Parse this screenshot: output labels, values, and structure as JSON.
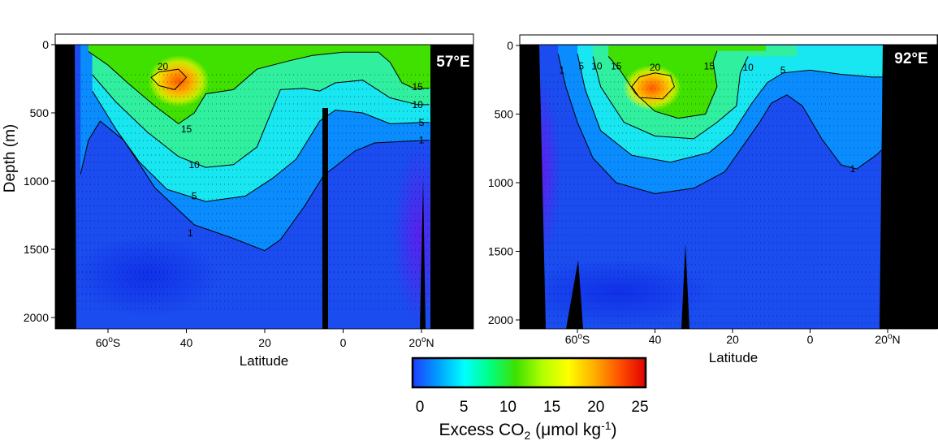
{
  "chart_data": [
    {
      "type": "heatmap",
      "title": "57°E",
      "xlabel": "Latitude",
      "ylabel": "Depth (m)",
      "xlim": [
        -74,
        33
      ],
      "ylim": [
        0,
        2100
      ],
      "x_ticks": [
        {
          "value": -60,
          "label": "60",
          "suffix": "o",
          "hemi": "S"
        },
        {
          "value": -40,
          "label": "40"
        },
        {
          "value": -20,
          "label": "20"
        },
        {
          "value": 0,
          "label": "0"
        },
        {
          "value": 20,
          "label": "20",
          "suffix": "o",
          "hemi": "N"
        }
      ],
      "y_ticks": [
        0,
        500,
        1000,
        1500,
        2000
      ],
      "contour_lines": [
        {
          "level": "20",
          "label": "20",
          "points": [
            [
              -47,
              200
            ],
            [
              -42,
              180
            ],
            [
              -40,
              240
            ],
            [
              -43,
              330
            ],
            [
              -47,
              300
            ],
            [
              -49,
              240
            ],
            [
              -47,
              200
            ]
          ],
          "label_at": [
            -46,
            160
          ]
        },
        {
          "level": "15",
          "label": "15",
          "points": [
            [
              -65,
              50
            ],
            [
              -60,
              150
            ],
            [
              -55,
              280
            ],
            [
              -48,
              450
            ],
            [
              -42,
              580
            ],
            [
              -38,
              500
            ],
            [
              -35,
              360
            ],
            [
              -28,
              330
            ],
            [
              -22,
              180
            ],
            [
              -14,
              120
            ],
            [
              -8,
              80
            ],
            [
              0,
              55
            ],
            [
              9,
              55
            ],
            [
              12,
              130
            ],
            [
              15,
              280
            ],
            [
              18,
              320
            ],
            [
              22,
              320
            ]
          ],
          "label_at": [
            -40,
            620
          ],
          "label2": "15",
          "label2_at": [
            19,
            310
          ]
        },
        {
          "level": "10",
          "label": "10",
          "points": [
            [
              -64,
              220
            ],
            [
              -58,
              420
            ],
            [
              -50,
              640
            ],
            [
              -42,
              820
            ],
            [
              -35,
              900
            ],
            [
              -28,
              880
            ],
            [
              -22,
              750
            ],
            [
              -16,
              330
            ],
            [
              -10,
              320
            ],
            [
              -6,
              340
            ],
            [
              -2,
              280
            ],
            [
              5,
              260
            ],
            [
              12,
              390
            ],
            [
              19,
              440
            ],
            [
              22,
              440
            ]
          ],
          "label_at": [
            -38,
            880
          ],
          "label2": "10",
          "label2_at": [
            19,
            440
          ]
        },
        {
          "level": "5",
          "label": "5",
          "points": [
            [
              -64,
              340
            ],
            [
              -58,
              620
            ],
            [
              -52,
              860
            ],
            [
              -45,
              1060
            ],
            [
              -35,
              1150
            ],
            [
              -25,
              1110
            ],
            [
              -18,
              980
            ],
            [
              -12,
              840
            ],
            [
              -6,
              560
            ],
            [
              -2,
              480
            ],
            [
              5,
              500
            ],
            [
              12,
              580
            ],
            [
              20,
              570
            ],
            [
              22,
              570
            ]
          ],
          "label_at": [
            -38,
            1110
          ],
          "label2": "5",
          "label2_at": [
            20,
            570
          ]
        },
        {
          "level": "1",
          "label": "1",
          "points": [
            [
              -67,
              950
            ],
            [
              -65,
              700
            ],
            [
              -62,
              560
            ],
            [
              -56,
              700
            ],
            [
              -48,
              1050
            ],
            [
              -38,
              1320
            ],
            [
              -28,
              1420
            ],
            [
              -20,
              1510
            ],
            [
              -16,
              1430
            ],
            [
              -10,
              1190
            ],
            [
              -5,
              960
            ],
            [
              3,
              780
            ],
            [
              8,
              720
            ],
            [
              15,
              710
            ],
            [
              22,
              700
            ]
          ],
          "label_at": [
            -39,
            1380
          ],
          "label2": "1",
          "label2_at": [
            20,
            700
          ]
        }
      ]
    },
    {
      "type": "heatmap",
      "title": "92°E",
      "xlabel": "Latitude",
      "ylabel": "",
      "xlim": [
        -74,
        33
      ],
      "ylim": [
        0,
        2100
      ],
      "x_ticks": [
        {
          "value": -60,
          "label": "60",
          "suffix": "o",
          "hemi": "S"
        },
        {
          "value": -40,
          "label": "40"
        },
        {
          "value": -20,
          "label": "20"
        },
        {
          "value": 0,
          "label": "0"
        },
        {
          "value": 20,
          "label": "20",
          "suffix": "o",
          "hemi": "N"
        }
      ],
      "y_ticks": [
        0,
        500,
        1000,
        1500,
        2000
      ],
      "contour_lines": [
        {
          "level": "20",
          "label": "20",
          "points": [
            [
              -44,
              230
            ],
            [
              -40,
              200
            ],
            [
              -36,
              220
            ],
            [
              -35,
              300
            ],
            [
              -38,
              390
            ],
            [
              -44,
              380
            ],
            [
              -46,
              300
            ],
            [
              -44,
              230
            ]
          ],
          "label_at": [
            -40,
            160
          ]
        },
        {
          "level": "15",
          "label": "15",
          "points": [
            [
              -52,
              80
            ],
            [
              -49,
              180
            ],
            [
              -45,
              350
            ],
            [
              -40,
              480
            ],
            [
              -34,
              530
            ],
            [
              -27,
              500
            ],
            [
              -24,
              300
            ],
            [
              -25,
              120
            ],
            [
              -24,
              40
            ]
          ],
          "label_at": [
            -50,
            150
          ],
          "label2": "15",
          "label2_at": [
            -26,
            150
          ]
        },
        {
          "level": "10",
          "label": "10",
          "points": [
            [
              -56,
              80
            ],
            [
              -54,
              300
            ],
            [
              -48,
              560
            ],
            [
              -40,
              660
            ],
            [
              -30,
              680
            ],
            [
              -24,
              560
            ],
            [
              -19,
              440
            ],
            [
              -18,
              200
            ],
            [
              -16,
              80
            ]
          ],
          "label_at": [
            -55,
            150
          ],
          "label2": "10",
          "label2_at": [
            -16,
            160
          ]
        },
        {
          "level": "5",
          "label": "5",
          "points": [
            [
              -60,
              60
            ],
            [
              -58,
              320
            ],
            [
              -54,
              620
            ],
            [
              -46,
              800
            ],
            [
              -36,
              850
            ],
            [
              -26,
              780
            ],
            [
              -20,
              640
            ],
            [
              -15,
              420
            ],
            [
              -11,
              270
            ],
            [
              -7,
              200
            ],
            [
              0,
              180
            ],
            [
              8,
              210
            ],
            [
              16,
              230
            ],
            [
              20,
              230
            ]
          ],
          "label_at": [
            -59,
            150
          ],
          "label2": "5",
          "label2_at": [
            -7,
            180
          ]
        },
        {
          "level": "1",
          "label": "1",
          "points": [
            [
              -65,
              60
            ],
            [
              -63,
              300
            ],
            [
              -60,
              560
            ],
            [
              -56,
              820
            ],
            [
              -50,
              1000
            ],
            [
              -40,
              1080
            ],
            [
              -30,
              1040
            ],
            [
              -22,
              920
            ],
            [
              -17,
              720
            ],
            [
              -13,
              560
            ],
            [
              -10,
              420
            ],
            [
              -6,
              360
            ],
            [
              -2,
              440
            ],
            [
              3,
              680
            ],
            [
              8,
              870
            ],
            [
              12,
              900
            ],
            [
              17,
              800
            ],
            [
              20,
              720
            ]
          ],
          "label_at": [
            -64,
            180
          ],
          "label2": "1",
          "label2_at": [
            11,
            900
          ]
        }
      ]
    }
  ],
  "colorbar": {
    "ticks": [
      "0",
      "5",
      "10",
      "15",
      "20",
      "25"
    ],
    "range": [
      0,
      25
    ],
    "colors": [
      "#1e3cff",
      "#00a0ff",
      "#00ffff",
      "#00ff80",
      "#40e000",
      "#b0ff00",
      "#ffff00",
      "#ffb000",
      "#ff5000",
      "#e00000"
    ],
    "label_main": "Excess CO",
    "label_sub": "2",
    "label_units": " (μmol kg",
    "label_exp": "-1",
    "label_close": ")"
  }
}
